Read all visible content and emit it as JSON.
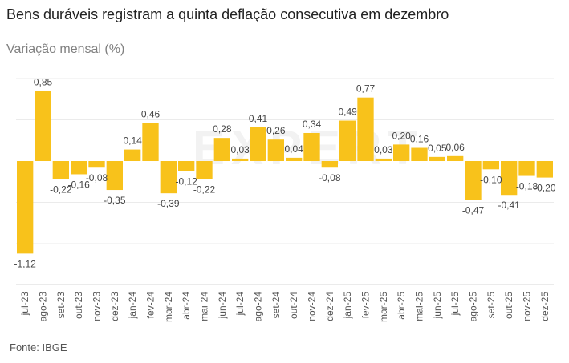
{
  "header": {
    "title": "Bens duráveis registram a quinta deflação consecutiva em dezembro",
    "subtitle": "Variação mensal (%)"
  },
  "footer": {
    "source": "Fonte: IBGE"
  },
  "watermark": "EXPERT",
  "colors": {
    "bar": "#F8C21B",
    "grid": "#EBEBEB"
  },
  "chart_data": {
    "type": "bar",
    "title": "Bens duráveis registram a quinta deflação consecutiva em dezembro",
    "subtitle": "Variação mensal (%)",
    "xlabel": "",
    "ylabel": "",
    "ylim": [
      -1.5,
      1.0
    ],
    "grid": true,
    "gridlines": [
      1.0,
      0.5,
      -0.5,
      -1.0,
      -1.5
    ],
    "legend": "none",
    "categories": [
      "jul-23",
      "ago-23",
      "set-23",
      "out-23",
      "nov-23",
      "dez-23",
      "jan-24",
      "fev-24",
      "mar-24",
      "abr-24",
      "mai-24",
      "jun-24",
      "jul-24",
      "ago-24",
      "set-24",
      "out-24",
      "nov-24",
      "dez-24",
      "jan-25",
      "fev-25",
      "mar-25",
      "abr-25",
      "mai-25",
      "jun-25",
      "jul-25",
      "ago-25",
      "set-25",
      "out-25",
      "nov-25",
      "dez-25"
    ],
    "values": [
      -1.12,
      0.85,
      -0.22,
      -0.16,
      -0.08,
      -0.35,
      0.14,
      0.46,
      -0.39,
      -0.12,
      -0.22,
      0.28,
      0.03,
      0.41,
      0.26,
      0.04,
      0.34,
      -0.08,
      0.49,
      0.77,
      0.03,
      0.2,
      0.16,
      0.05,
      0.06,
      -0.47,
      -0.1,
      -0.41,
      -0.18,
      -0.2
    ],
    "data_labels": [
      "-1,12",
      "0,85",
      "-0,22",
      "-0,16",
      "-0,08",
      "-0,35",
      "0,14",
      "0,46",
      "-0,39",
      "-0,12",
      "-0,22",
      "0,28",
      "0,03",
      "0,41",
      "0,26",
      "0,04",
      "0,34",
      "-0,08",
      "0,49",
      "0,77",
      "0,03",
      "0,20",
      "0,16",
      "0,05",
      "0,06",
      "-0,47",
      "-0,10",
      "-0,41",
      "-0,18",
      "-0,20"
    ],
    "source": "Fonte: IBGE"
  }
}
